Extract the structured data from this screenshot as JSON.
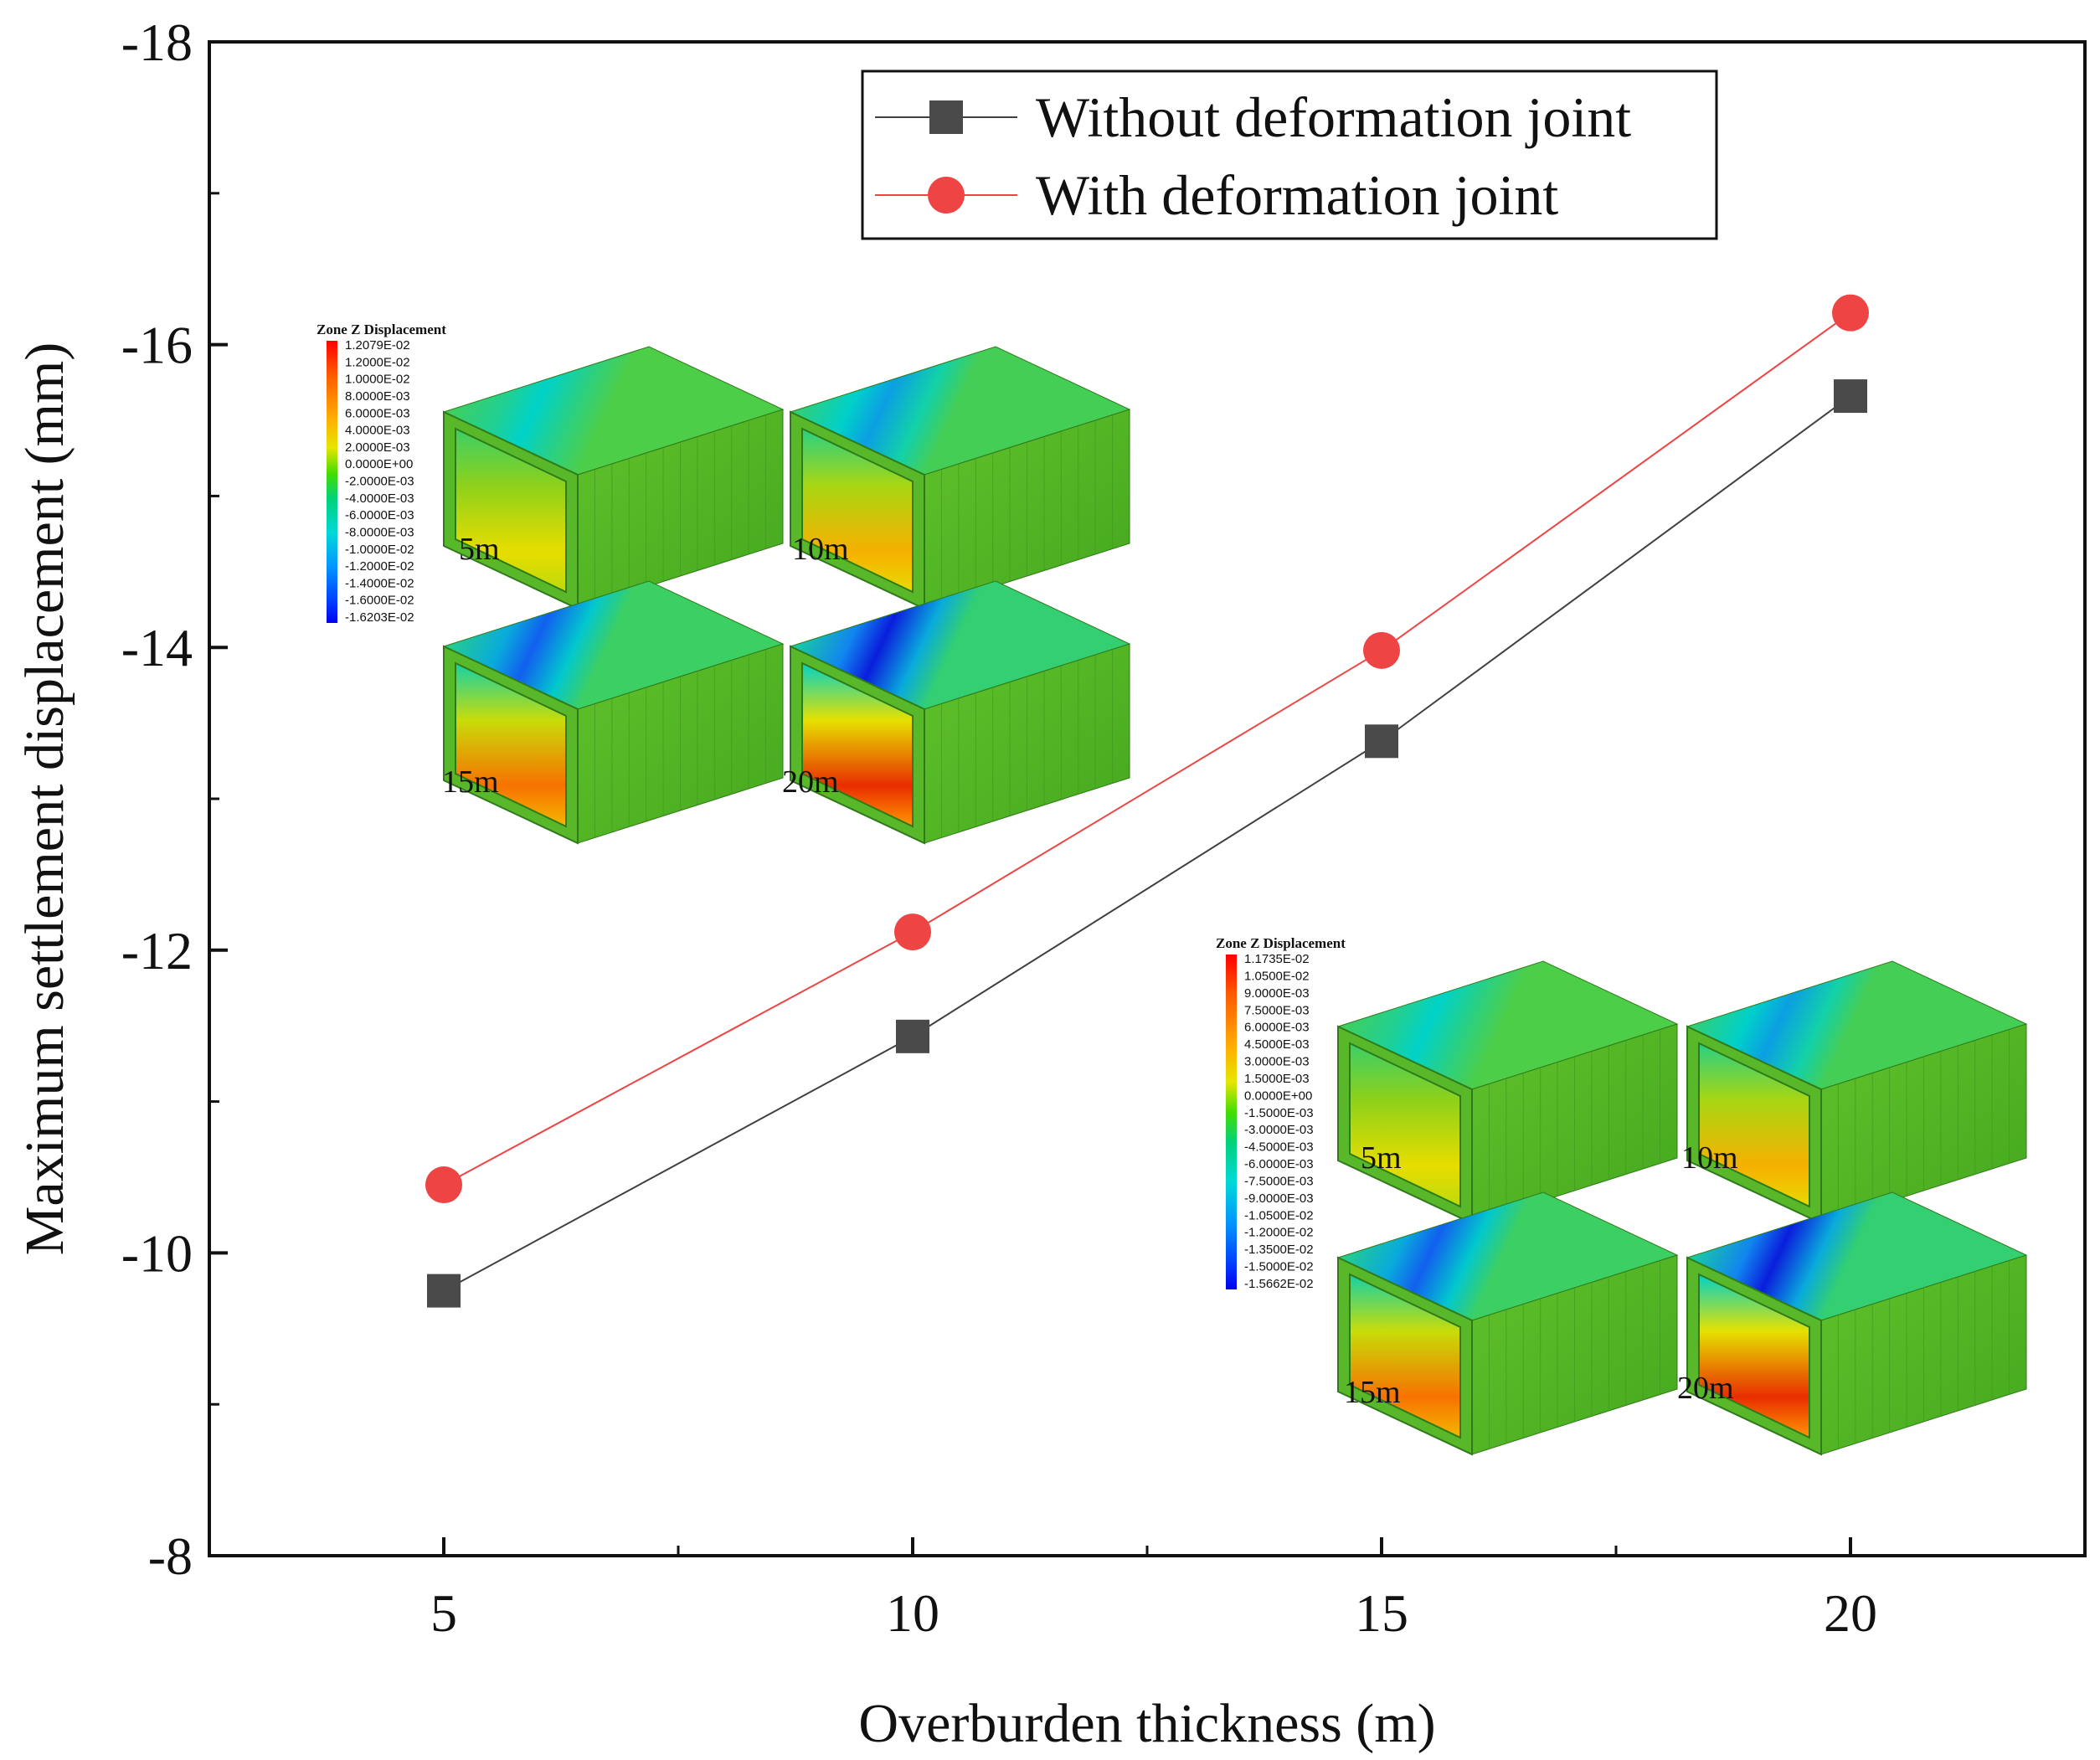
{
  "chart_data": {
    "type": "line",
    "x": [
      5,
      10,
      15,
      20
    ],
    "series": [
      {
        "name": "Without deformation joint",
        "marker": "square",
        "color": "#404040",
        "marker_color": "#4a4a4a",
        "values": [
          -9.75,
          -11.43,
          -13.38,
          -15.66
        ]
      },
      {
        "name": "With deformation joint",
        "marker": "circle",
        "color": "#ee4444",
        "marker_color": "#ee4444",
        "values": [
          -10.45,
          -12.12,
          -13.98,
          -16.21
        ]
      }
    ],
    "xlabel": "Overburden thickness (m)",
    "ylabel": "Maximum settlement displacement (mm)",
    "xlim": [
      2.5,
      22.5
    ],
    "ylim": [
      -8,
      -18
    ],
    "x_ticks": [
      5,
      10,
      15,
      20
    ],
    "x_tick_labels": [
      "5",
      "10",
      "15",
      "20"
    ],
    "x_minor_ticks": [
      7.5,
      12.5,
      17.5
    ],
    "y_ticks": [
      -8,
      -10,
      -12,
      -14,
      -16,
      -18
    ],
    "y_tick_labels": [
      "-8",
      "-10",
      "-12",
      "-14",
      "-16",
      "-18"
    ],
    "y_minor_ticks": [
      -9,
      -11,
      -13,
      -15,
      -17
    ],
    "legend_position": "top-right",
    "grid": false
  },
  "insets": [
    {
      "title": "Zone Z Displacement",
      "colorbar_labels": [
        "1.2079E-02",
        "1.2000E-02",
        "1.0000E-02",
        "8.0000E-03",
        "6.0000E-03",
        "4.0000E-03",
        "2.0000E-03",
        "0.0000E+00",
        "-2.0000E-03",
        "-4.0000E-03",
        "-6.0000E-03",
        "-8.0000E-03",
        "-1.0000E-02",
        "-1.2000E-02",
        "-1.4000E-02",
        "-1.6000E-02",
        "-1.6203E-02"
      ],
      "models": [
        {
          "label": "5m",
          "intensity": 0.35
        },
        {
          "label": "10m",
          "intensity": 0.55
        },
        {
          "label": "15m",
          "intensity": 0.78
        },
        {
          "label": "20m",
          "intensity": 1.0
        }
      ]
    },
    {
      "title": "Zone Z Displacement",
      "colorbar_labels": [
        "1.1735E-02",
        "1.0500E-02",
        "9.0000E-03",
        "7.5000E-03",
        "6.0000E-03",
        "4.5000E-03",
        "3.0000E-03",
        "1.5000E-03",
        "0.0000E+00",
        "-1.5000E-03",
        "-3.0000E-03",
        "-4.5000E-03",
        "-6.0000E-03",
        "-7.5000E-03",
        "-9.0000E-03",
        "-1.0500E-02",
        "-1.2000E-02",
        "-1.3500E-02",
        "-1.5000E-02",
        "-1.5662E-02"
      ],
      "models": [
        {
          "label": "5m",
          "intensity": 0.35
        },
        {
          "label": "10m",
          "intensity": 0.55
        },
        {
          "label": "15m",
          "intensity": 0.78
        },
        {
          "label": "20m",
          "intensity": 1.0
        }
      ]
    }
  ]
}
